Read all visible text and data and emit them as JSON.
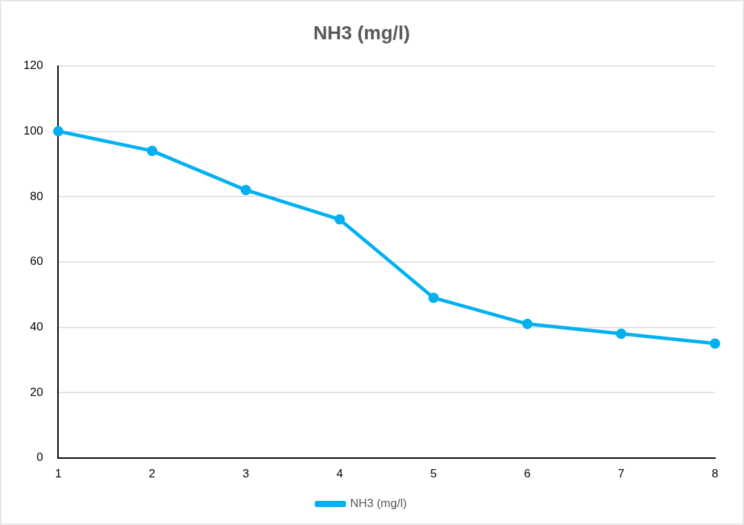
{
  "chart_data": {
    "type": "line",
    "title": "NH3 (mg/l)",
    "categories": [
      "1",
      "2",
      "3",
      "4",
      "5",
      "6",
      "7",
      "8"
    ],
    "series": [
      {
        "name": "NH3 (mg/l)",
        "color": "#00b0f0",
        "values": [
          100,
          94,
          82,
          73,
          49,
          41,
          38,
          35
        ]
      }
    ],
    "ylim": [
      0,
      120
    ],
    "yticks": [
      0,
      20,
      40,
      60,
      80,
      100,
      120
    ],
    "grid": "y",
    "legend": "bottom",
    "marker": "circle",
    "line_style": "solid"
  }
}
